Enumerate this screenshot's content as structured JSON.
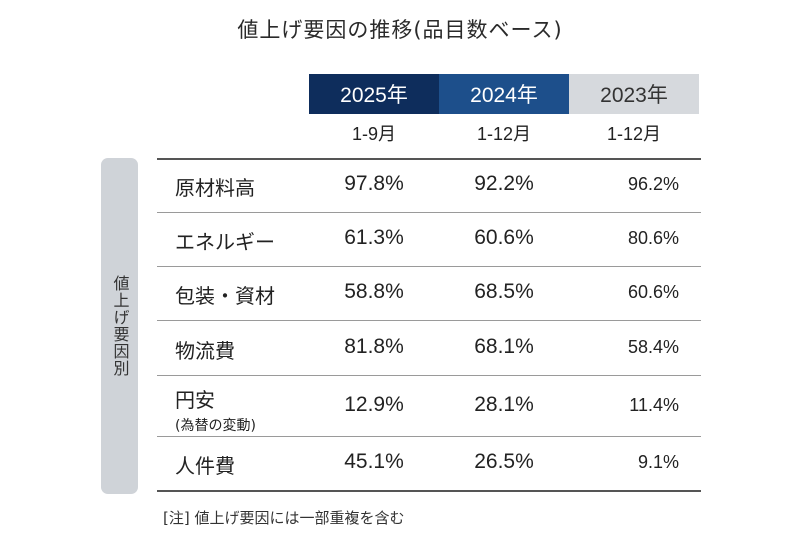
{
  "chart_data": {
    "type": "table",
    "title": "値上げ要因の推移(品目数ベース)",
    "row_group_label": "値上げ要因別",
    "columns": [
      {
        "year": "2025年",
        "period": "1-9月",
        "bg": "#0e2d5c",
        "fg": "#ffffff"
      },
      {
        "year": "2024年",
        "period": "1-12月",
        "bg": "#1d4f8b",
        "fg": "#ffffff"
      },
      {
        "year": "2023年",
        "period": "1-12月",
        "bg": "#d6d9dd",
        "fg": "#333333"
      }
    ],
    "rows": [
      {
        "label": "原材料高",
        "sub": "",
        "values": [
          "97.8%",
          "92.2%",
          "96.2%"
        ]
      },
      {
        "label": "エネルギー",
        "sub": "",
        "values": [
          "61.3%",
          "60.6%",
          "80.6%"
        ]
      },
      {
        "label": "包装・資材",
        "sub": "",
        "values": [
          "58.8%",
          "68.5%",
          "60.6%"
        ]
      },
      {
        "label": "物流費",
        "sub": "",
        "values": [
          "81.8%",
          "68.1%",
          "58.4%"
        ]
      },
      {
        "label": "円安",
        "sub": "(為替の変動)",
        "values": [
          "12.9%",
          "28.1%",
          "11.4%"
        ]
      },
      {
        "label": "人件費",
        "sub": "",
        "values": [
          "45.1%",
          "26.5%",
          "9.1%"
        ]
      }
    ],
    "note": "[注] 値上げ要因には一部重複を含む"
  }
}
